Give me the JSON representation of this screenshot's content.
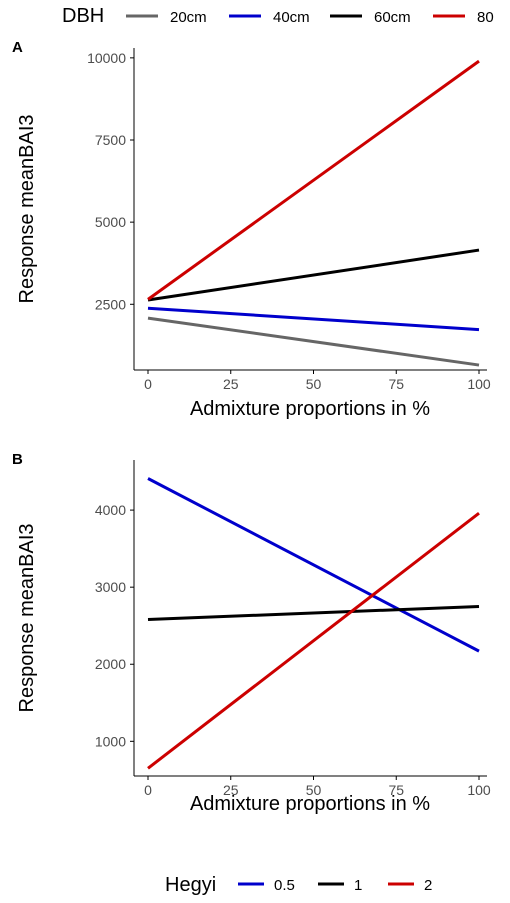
{
  "chart_data": [
    {
      "panel": "A",
      "type": "line",
      "xlabel": "Admixture proportions in %",
      "ylabel": "Response meanBAI3",
      "xlim": [
        0,
        100
      ],
      "ylim": [
        500,
        10300
      ],
      "xticks": [
        "0",
        "25",
        "50",
        "75",
        "100"
      ],
      "yticks": [
        "2500",
        "5000",
        "7500",
        "10000"
      ],
      "xtick_values": [
        0,
        25,
        50,
        75,
        100
      ],
      "ytick_values": [
        2500,
        5000,
        7500,
        10000
      ],
      "legend": {
        "title": "DBH",
        "position": "top"
      },
      "series": [
        {
          "name": "20cm",
          "color": "#666666",
          "x": [
            0,
            100
          ],
          "y": [
            2080,
            650
          ]
        },
        {
          "name": "40cm",
          "color": "#0000cc",
          "x": [
            0,
            100
          ],
          "y": [
            2380,
            1730
          ]
        },
        {
          "name": "60cm",
          "color": "#000000",
          "x": [
            0,
            100
          ],
          "y": [
            2630,
            4150
          ]
        },
        {
          "name": "80",
          "color": "#cc0000",
          "x": [
            0,
            100
          ],
          "y": [
            2650,
            9900
          ]
        }
      ]
    },
    {
      "panel": "B",
      "type": "line",
      "xlabel": "Admixture proportions in %",
      "ylabel": "Response meanBAI3",
      "xlim": [
        0,
        100
      ],
      "ylim": [
        550,
        4650
      ],
      "xticks": [
        "0",
        "25",
        "50",
        "75",
        "100"
      ],
      "yticks": [
        "1000",
        "2000",
        "3000",
        "4000"
      ],
      "xtick_values": [
        0,
        25,
        50,
        75,
        100
      ],
      "ytick_values": [
        1000,
        2000,
        3000,
        4000
      ],
      "legend": {
        "title": "Hegyi",
        "position": "bottom"
      },
      "series": [
        {
          "name": "0.5",
          "color": "#0000cc",
          "x": [
            0,
            100
          ],
          "y": [
            4410,
            2170
          ]
        },
        {
          "name": "1",
          "color": "#000000",
          "x": [
            0,
            100
          ],
          "y": [
            2580,
            2750
          ]
        },
        {
          "name": "2",
          "color": "#cc0000",
          "x": [
            0,
            100
          ],
          "y": [
            650,
            3960
          ]
        }
      ]
    }
  ]
}
